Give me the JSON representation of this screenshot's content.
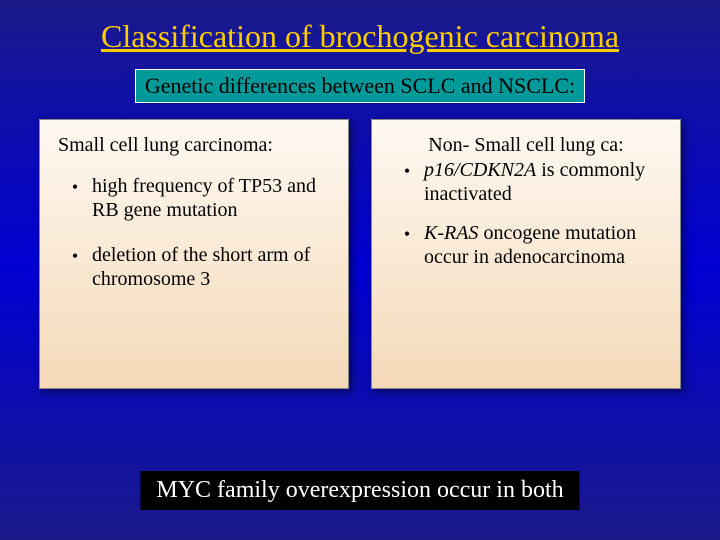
{
  "title": "Classification of brochogenic carcinoma",
  "subtitle": "Genetic differences between SCLC and NSCLC:",
  "left_panel": {
    "heading": "Small cell lung carcinoma:",
    "bullets": [
      "high frequency of TP53 and RB gene mutation",
      "deletion of the short arm of chromosome 3"
    ]
  },
  "right_panel": {
    "heading": "Non- Small cell lung ca:",
    "bullet1_prefix_italic": "p16/CDKN2A",
    "bullet1_rest": " is commonly inactivated",
    "bullet2_prefix_italic": "K-RAS",
    "bullet2_rest": " oncogene mutation occur in adenocarcinoma"
  },
  "footer": "MYC family overexpression occur in both",
  "colors": {
    "title_color": "#ffcc00",
    "subtitle_bg": "#009999",
    "panel_grad_top": "#fef9f2",
    "panel_grad_bottom": "#f5d9b8",
    "footer_bg": "#000000",
    "footer_text": "#ffffff",
    "body_grad": "#0000d4"
  }
}
